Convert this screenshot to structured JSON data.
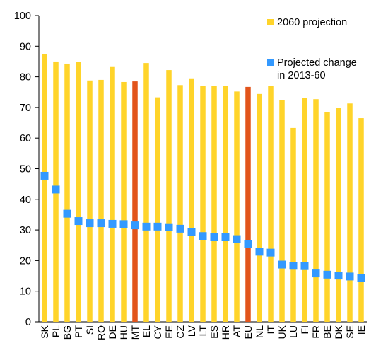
{
  "chart_data": {
    "type": "bar",
    "categories": [
      "SK",
      "PL",
      "BG",
      "PT",
      "SI",
      "RO",
      "DE",
      "HU",
      "MT",
      "EL",
      "CY",
      "EE",
      "CZ",
      "LV",
      "LT",
      "ES",
      "HR",
      "AT",
      "EU",
      "NL",
      "IT",
      "UK",
      "LU",
      "FI",
      "FR",
      "BE",
      "DK",
      "SE",
      "IE"
    ],
    "series": [
      {
        "name": "2060 projection",
        "kind": "bar",
        "color": "#FFD42A",
        "values": [
          87.5,
          85.0,
          84.3,
          84.8,
          78.8,
          79.0,
          83.2,
          78.3,
          78.5,
          84.5,
          73.3,
          82.2,
          77.3,
          79.5,
          77.0,
          77.0,
          77.0,
          75.2,
          76.7,
          74.4,
          77.0,
          72.5,
          63.3,
          73.2,
          72.7,
          68.4,
          69.8,
          71.3,
          66.5
        ]
      },
      {
        "name": "Projected change in 2013-60",
        "kind": "marker",
        "color": "#3399FF",
        "values": [
          47.7,
          43.2,
          35.3,
          32.9,
          32.2,
          32.2,
          32.0,
          31.9,
          31.5,
          31.1,
          31.1,
          30.9,
          30.4,
          29.4,
          28.0,
          27.6,
          27.6,
          27.0,
          25.4,
          22.9,
          22.6,
          18.7,
          18.3,
          18.2,
          15.8,
          15.4,
          15.1,
          14.8,
          14.4
        ]
      }
    ],
    "highlight_categories": [
      "MT",
      "EU"
    ],
    "highlight_color": "#E2541B",
    "ylim": [
      0,
      100
    ],
    "yticks": [
      "0",
      "10",
      "20",
      "30",
      "40",
      "50",
      "60",
      "70",
      "80",
      "90",
      "100"
    ],
    "title": "",
    "xlabel": "",
    "ylabel": "",
    "grid": false,
    "legend": {
      "placement": "top-right",
      "items": [
        {
          "lines": [
            "2060 projection"
          ],
          "color": "#FFD42A"
        },
        {
          "lines": [
            "Projected change",
            "in 2013-60"
          ],
          "color": "#3399FF"
        }
      ]
    }
  }
}
